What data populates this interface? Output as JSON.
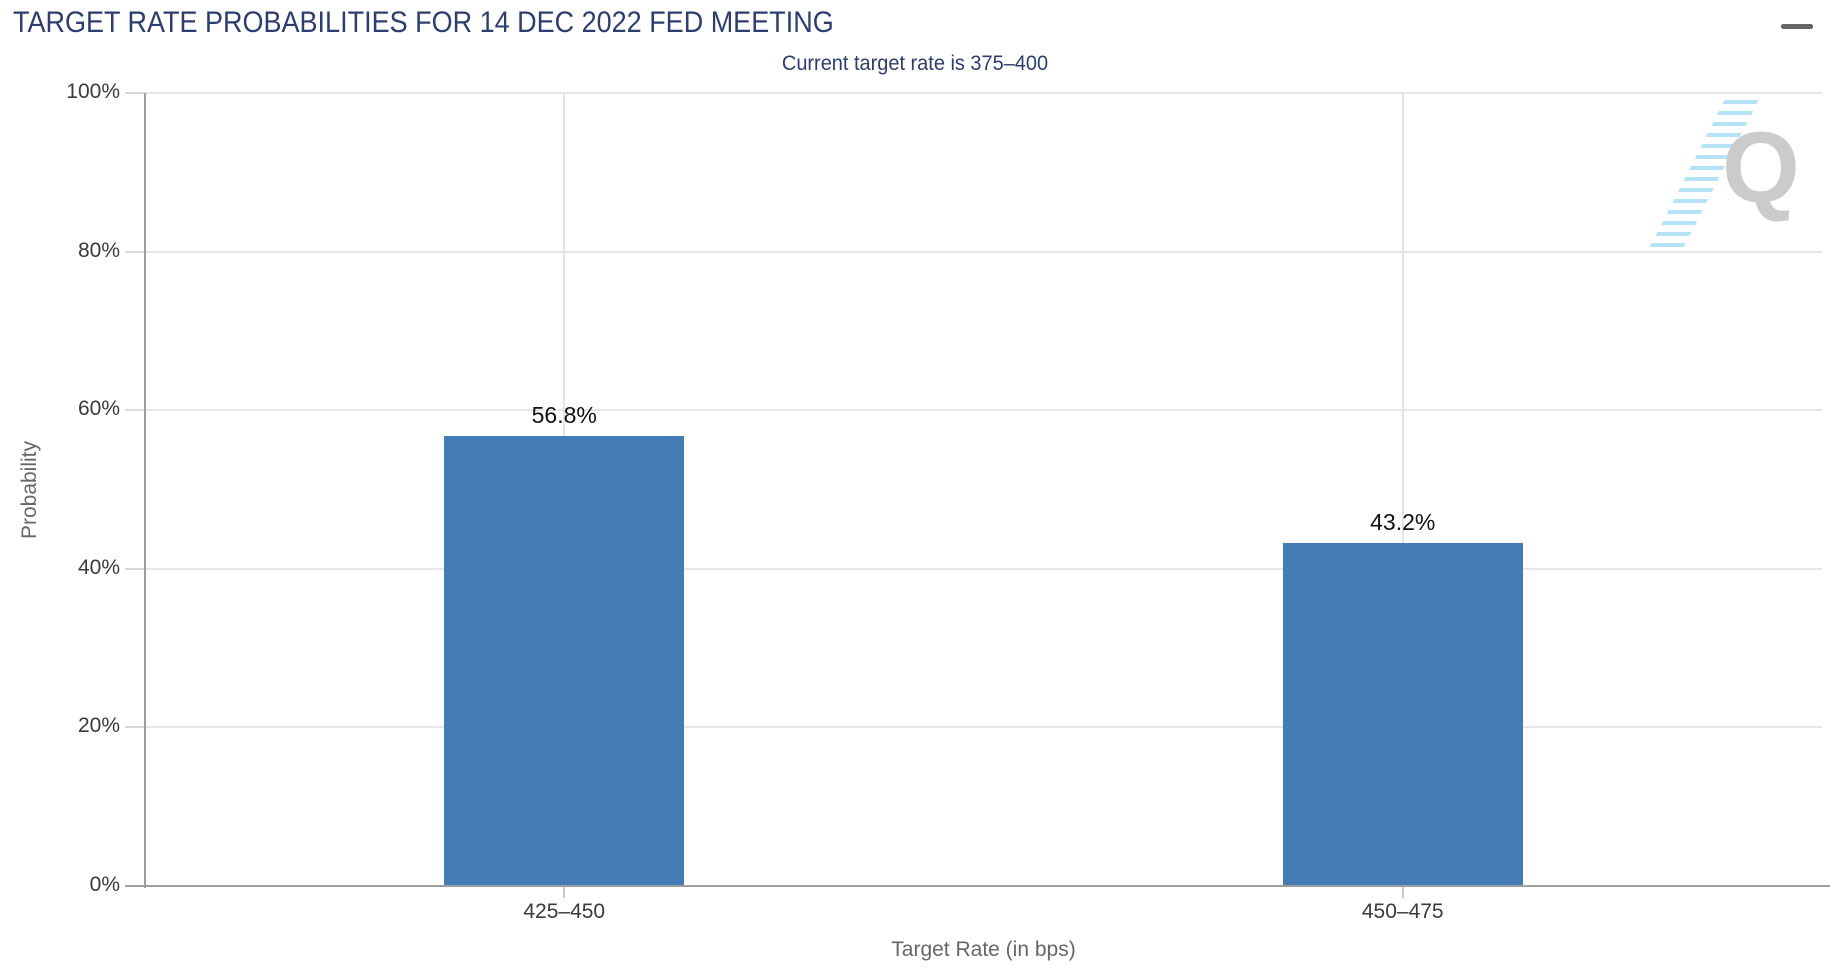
{
  "header": {
    "menu_icon": "hamburger-icon"
  },
  "watermark": {
    "letter": "Q"
  },
  "chart_data": {
    "type": "bar",
    "title": "TARGET RATE PROBABILITIES FOR 14 DEC 2022 FED MEETING",
    "subtitle": "Current target rate is 375–400",
    "categories": [
      "425–450",
      "450–475"
    ],
    "values": [
      56.8,
      43.2
    ],
    "value_labels": [
      "56.8%",
      "43.2%"
    ],
    "xlabel": "Target Rate (in bps)",
    "ylabel": "Probability",
    "ylim": [
      0,
      100
    ],
    "yticks": [
      0,
      20,
      40,
      60,
      80,
      100
    ],
    "ytick_labels": [
      "0%",
      "20%",
      "40%",
      "60%",
      "80%",
      "100%"
    ],
    "grid": true,
    "legend": "none",
    "bar_color": "#437CB4",
    "title_color": "#2C3E6F",
    "tick_label_color": "#3A3A3A",
    "axis_title_color": "#666666"
  }
}
